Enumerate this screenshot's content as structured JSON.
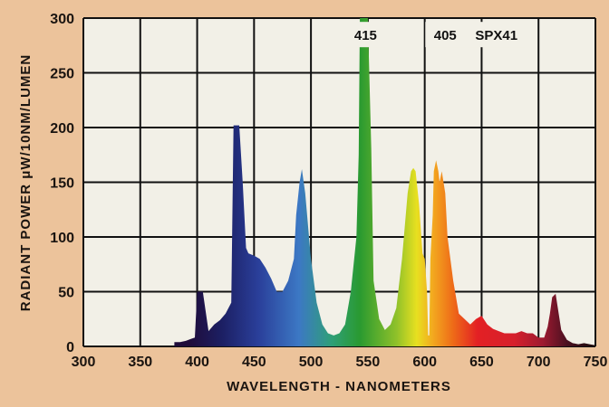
{
  "chart_data": {
    "type": "area",
    "title": "",
    "xlabel": "WAVELENGTH - NANOMETERS",
    "ylabel": "RADIANT POWER μW/10NM/LUMEN",
    "xlim": [
      300,
      750
    ],
    "ylim": [
      0,
      300
    ],
    "x_ticks": [
      300,
      350,
      400,
      450,
      500,
      550,
      600,
      650,
      700,
      750
    ],
    "y_ticks": [
      0,
      50,
      100,
      150,
      200,
      250,
      300
    ],
    "x_tick_labels": [
      "300",
      "350",
      "400",
      "450",
      "500",
      "550",
      "600",
      "650",
      "700",
      "750"
    ],
    "y_tick_labels": [
      "0",
      "50",
      "100",
      "150",
      "200",
      "250",
      "300"
    ],
    "grid": true,
    "series": [
      {
        "name": "SPX41",
        "x": [
          380,
          385,
          390,
          395,
          398,
          400,
          402,
          405,
          410,
          415,
          420,
          425,
          430,
          432,
          435,
          437,
          440,
          443,
          445,
          450,
          455,
          460,
          465,
          470,
          475,
          480,
          485,
          487,
          490,
          492,
          495,
          500,
          505,
          510,
          515,
          520,
          525,
          530,
          535,
          540,
          542,
          543,
          545,
          550,
          553,
          555,
          560,
          565,
          570,
          575,
          580,
          585,
          588,
          590,
          592,
          595,
          598,
          600,
          602,
          603,
          604,
          605,
          607,
          608,
          610,
          612,
          613,
          615,
          618,
          620,
          625,
          630,
          635,
          640,
          645,
          650,
          655,
          660,
          665,
          670,
          675,
          680,
          685,
          690,
          695,
          700,
          705,
          708,
          710,
          712,
          715,
          720,
          725,
          730,
          735,
          740,
          745,
          750
        ],
        "y": [
          4,
          4,
          5,
          7,
          8,
          50,
          50,
          50,
          14,
          20,
          24,
          30,
          40,
          202,
          202,
          202,
          150,
          90,
          85,
          83,
          80,
          72,
          62,
          50,
          50,
          60,
          80,
          120,
          150,
          162,
          140,
          80,
          40,
          20,
          12,
          10,
          12,
          20,
          50,
          100,
          175,
          300,
          300,
          300,
          180,
          60,
          25,
          15,
          20,
          35,
          80,
          140,
          160,
          163,
          160,
          130,
          85,
          80,
          50,
          10,
          10,
          80,
          120,
          160,
          170,
          160,
          150,
          160,
          140,
          100,
          60,
          30,
          25,
          20,
          25,
          28,
          20,
          16,
          14,
          12,
          12,
          12,
          14,
          12,
          12,
          8,
          8,
          18,
          30,
          45,
          48,
          15,
          6,
          3,
          2,
          3,
          2,
          1
        ]
      }
    ],
    "annotations": [
      {
        "text": "415",
        "x": 548,
        "y": 280
      },
      {
        "text": "405",
        "x": 618,
        "y": 280
      },
      {
        "text": "SPX41",
        "x": 663,
        "y": 280
      }
    ]
  }
}
